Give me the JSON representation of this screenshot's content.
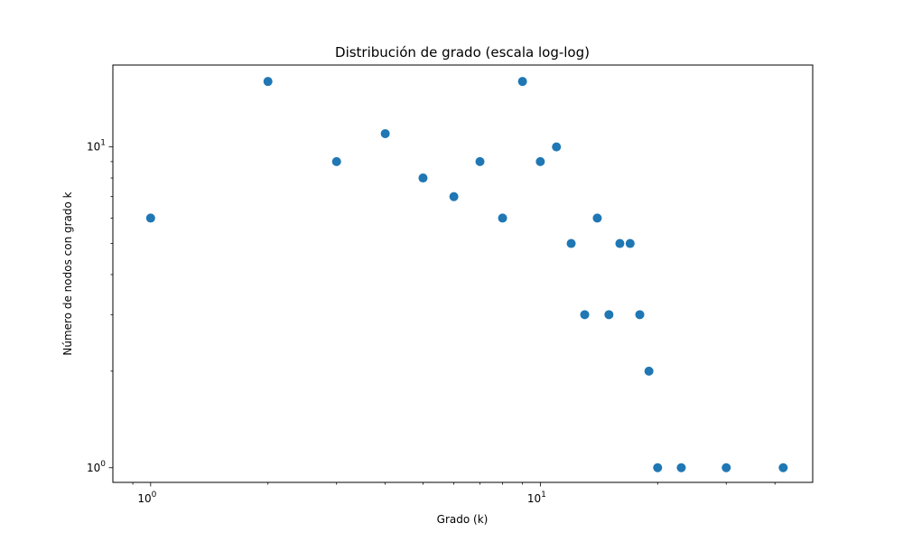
{
  "chart_data": {
    "type": "scatter",
    "title": "Distribución de grado (escala log-log)",
    "xlabel": "Grado (k)",
    "ylabel": "Número de nodos con grado k",
    "xscale": "log",
    "yscale": "log",
    "xlim": [
      0.8,
      50
    ],
    "ylim": [
      0.9,
      18
    ],
    "grid": false,
    "marker_color": "#1f77b4",
    "x_ticks": [
      {
        "value": 1,
        "base": "10",
        "exp": "0"
      },
      {
        "value": 10,
        "base": "10",
        "exp": "1"
      }
    ],
    "y_ticks": [
      {
        "value": 1,
        "base": "10",
        "exp": "0"
      },
      {
        "value": 10,
        "base": "10",
        "exp": "1"
      }
    ],
    "points": [
      {
        "x": 1,
        "y": 6
      },
      {
        "x": 2,
        "y": 16
      },
      {
        "x": 3,
        "y": 9
      },
      {
        "x": 4,
        "y": 11
      },
      {
        "x": 5,
        "y": 8
      },
      {
        "x": 6,
        "y": 7
      },
      {
        "x": 7,
        "y": 9
      },
      {
        "x": 8,
        "y": 6
      },
      {
        "x": 9,
        "y": 16
      },
      {
        "x": 10,
        "y": 9
      },
      {
        "x": 11,
        "y": 10
      },
      {
        "x": 12,
        "y": 5
      },
      {
        "x": 13,
        "y": 3
      },
      {
        "x": 14,
        "y": 6
      },
      {
        "x": 15,
        "y": 3
      },
      {
        "x": 16,
        "y": 5
      },
      {
        "x": 17,
        "y": 5
      },
      {
        "x": 18,
        "y": 3
      },
      {
        "x": 19,
        "y": 2
      },
      {
        "x": 20,
        "y": 1
      },
      {
        "x": 23,
        "y": 1
      },
      {
        "x": 30,
        "y": 1
      },
      {
        "x": 42,
        "y": 1
      }
    ]
  }
}
